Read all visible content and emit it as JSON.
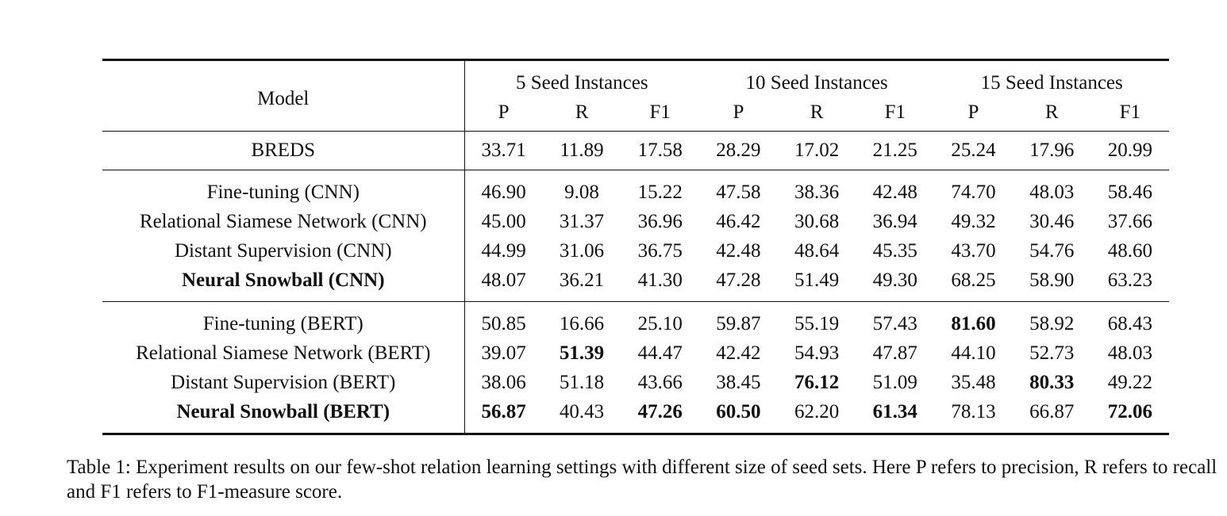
{
  "table": {
    "model_header": "Model",
    "groups": [
      "5 Seed Instances",
      "10 Seed Instances",
      "15 Seed Instances"
    ],
    "metrics": [
      "P",
      "R",
      "F1"
    ],
    "rows": [
      {
        "model": "BREDS",
        "bold": false,
        "values": [
          "33.71",
          "11.89",
          "17.58",
          "28.29",
          "17.02",
          "21.25",
          "25.24",
          "17.96",
          "20.99"
        ],
        "bold_cells": []
      },
      {
        "model": "Fine-tuning (CNN)",
        "bold": false,
        "values": [
          "46.90",
          "9.08",
          "15.22",
          "47.58",
          "38.36",
          "42.48",
          "74.70",
          "48.03",
          "58.46"
        ],
        "bold_cells": []
      },
      {
        "model": "Relational Siamese Network (CNN)",
        "bold": false,
        "values": [
          "45.00",
          "31.37",
          "36.96",
          "46.42",
          "30.68",
          "36.94",
          "49.32",
          "30.46",
          "37.66"
        ],
        "bold_cells": []
      },
      {
        "model": "Distant Supervision (CNN)",
        "bold": false,
        "values": [
          "44.99",
          "31.06",
          "36.75",
          "42.48",
          "48.64",
          "45.35",
          "43.70",
          "54.76",
          "48.60"
        ],
        "bold_cells": []
      },
      {
        "model": "Neural Snowball (CNN)",
        "bold": true,
        "values": [
          "48.07",
          "36.21",
          "41.30",
          "47.28",
          "51.49",
          "49.30",
          "68.25",
          "58.90",
          "63.23"
        ],
        "bold_cells": []
      },
      {
        "model": "Fine-tuning (BERT)",
        "bold": false,
        "values": [
          "50.85",
          "16.66",
          "25.10",
          "59.87",
          "55.19",
          "57.43",
          "81.60",
          "58.92",
          "68.43"
        ],
        "bold_cells": [
          6
        ]
      },
      {
        "model": "Relational Siamese Network (BERT)",
        "bold": false,
        "values": [
          "39.07",
          "51.39",
          "44.47",
          "42.42",
          "54.93",
          "47.87",
          "44.10",
          "52.73",
          "48.03"
        ],
        "bold_cells": [
          1
        ]
      },
      {
        "model": "Distant Supervision (BERT)",
        "bold": false,
        "values": [
          "38.06",
          "51.18",
          "43.66",
          "38.45",
          "76.12",
          "51.09",
          "35.48",
          "80.33",
          "49.22"
        ],
        "bold_cells": [
          4,
          7
        ]
      },
      {
        "model": "Neural Snowball (BERT)",
        "bold": true,
        "values": [
          "56.87",
          "40.43",
          "47.26",
          "60.50",
          "62.20",
          "61.34",
          "78.13",
          "66.87",
          "72.06"
        ],
        "bold_cells": [
          0,
          2,
          3,
          5,
          8
        ]
      }
    ]
  },
  "caption": "Table 1: Experiment results on our few-shot relation learning settings with different size of seed sets. Here P refers to precision, R refers to recall and F1 refers to F1-measure score."
}
